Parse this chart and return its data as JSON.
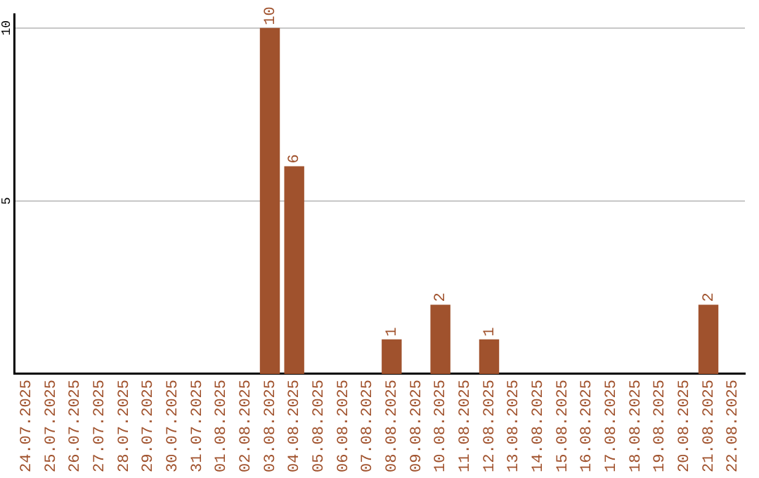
{
  "chart_data": {
    "type": "bar",
    "categories": [
      "24.07.2025",
      "25.07.2025",
      "26.07.2025",
      "27.07.2025",
      "28.07.2025",
      "29.07.2025",
      "30.07.2025",
      "31.07.2025",
      "01.08.2025",
      "02.08.2025",
      "03.08.2025",
      "04.08.2025",
      "05.08.2025",
      "06.08.2025",
      "07.08.2025",
      "08.08.2025",
      "09.08.2025",
      "10.08.2025",
      "11.08.2025",
      "12.08.2025",
      "13.08.2025",
      "14.08.2025",
      "15.08.2025",
      "16.08.2025",
      "17.08.2025",
      "18.08.2025",
      "19.08.2025",
      "20.08.2025",
      "21.08.2025",
      "22.08.2025"
    ],
    "values": [
      0,
      0,
      0,
      0,
      0,
      0,
      0,
      0,
      0,
      0,
      10,
      6,
      0,
      0,
      0,
      1,
      0,
      2,
      0,
      1,
      0,
      0,
      0,
      0,
      0,
      0,
      0,
      0,
      2,
      0
    ],
    "value_labels": [
      null,
      null,
      null,
      null,
      null,
      null,
      null,
      null,
      null,
      null,
      "10",
      "6",
      null,
      null,
      null,
      "1",
      null,
      "2",
      null,
      "1",
      null,
      null,
      null,
      null,
      null,
      null,
      null,
      null,
      "2",
      null
    ],
    "color": "#a0522d",
    "ylim": [
      0,
      10.4
    ],
    "yticks": [
      5,
      10
    ],
    "grid": "y",
    "legend": false
  }
}
